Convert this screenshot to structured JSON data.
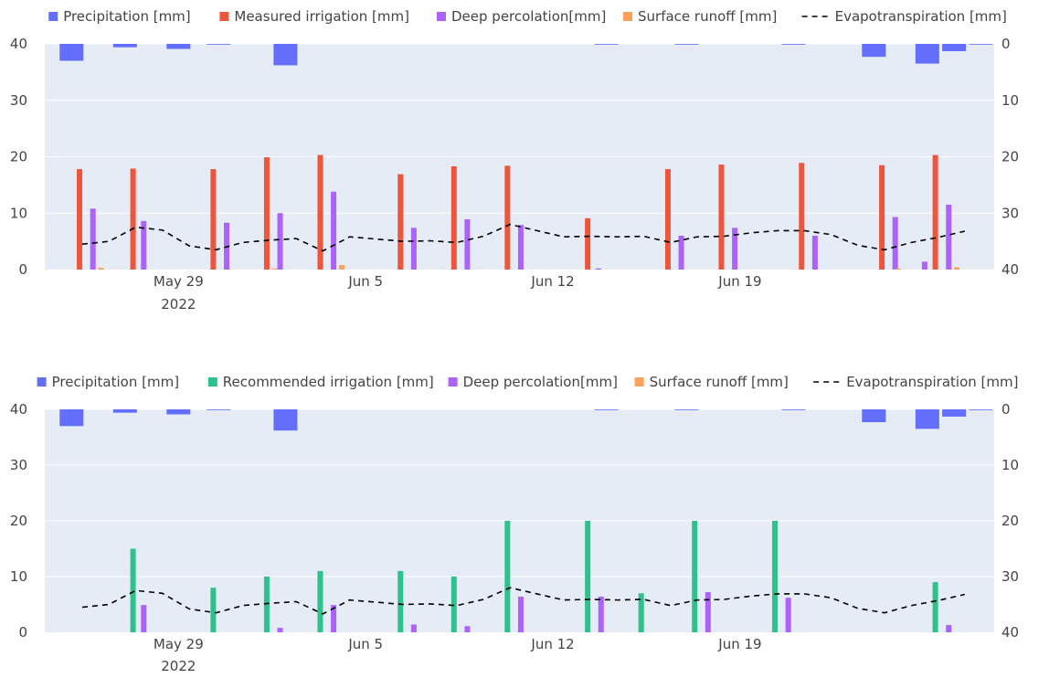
{
  "chart_data": [
    {
      "type": "bar",
      "series": [
        {
          "name": "Precipitation [mm]",
          "axis": "right",
          "x": [
            25,
            27,
            29,
            30.5,
            33,
            45,
            48,
            52,
            55,
            57,
            58,
            59
          ],
          "values": [
            3,
            0.6,
            0.9,
            0,
            3.8,
            0.05,
            0.1,
            0.05,
            2.3,
            3.5,
            1.3,
            0
          ],
          "color": "#636efa"
        },
        {
          "name": "Measured irrigation [mm]",
          "axis": "left",
          "x": [
            25.3,
            27.3,
            30.3,
            32.3,
            34.3,
            37.3,
            39.3,
            41.3,
            44.3,
            47.3,
            49.3,
            52.3,
            55.3,
            57.3
          ],
          "values": [
            17.8,
            17.9,
            17.8,
            19.9,
            20.3,
            16.9,
            18.3,
            18.4,
            9.1,
            17.8,
            18.6,
            18.9,
            18.5,
            20.3
          ],
          "color": "#ef553b"
        },
        {
          "name": "Deep percolation[mm]",
          "axis": "left",
          "x": [
            25.8,
            27.7,
            30.8,
            32.8,
            34.8,
            37.8,
            39.8,
            41.8,
            44.7,
            47.8,
            49.8,
            52.8,
            55.8,
            56.9,
            57.8
          ],
          "values": [
            10.8,
            8.6,
            8.3,
            10.0,
            13.8,
            7.4,
            8.9,
            7.9,
            0.2,
            6.0,
            7.4,
            6.0,
            9.3,
            1.4,
            11.5
          ],
          "color": "#ab63fa"
        },
        {
          "name": "Surface runoff [mm]",
          "axis": "left",
          "x": [
            26.1,
            32.6,
            35.1,
            55.9,
            58.1
          ],
          "values": [
            0.3,
            0.2,
            0.8,
            0.2,
            0.4
          ],
          "color": "#ffa15a"
        },
        {
          "name": "Evapotranspiration [mm]",
          "type": "line",
          "axis": "right",
          "x": [
            25.4,
            26.4,
            27.4,
            28.4,
            29.4,
            30.4,
            31.4,
            32.4,
            33.4,
            34.4,
            35.4,
            36.4,
            37.4,
            38.4,
            39.4,
            40.4,
            41.4,
            42.4,
            43.4,
            44.4,
            45.4,
            46.4,
            47.4,
            48.4,
            49.4,
            50.4,
            51.4,
            52.4,
            53.4,
            54.4,
            55.4,
            56.4,
            57.4,
            58.4
          ],
          "values": [
            35.5,
            35,
            32.5,
            33,
            35.8,
            36.5,
            35.2,
            34.8,
            34.5,
            36.7,
            34.2,
            34.6,
            35,
            34.9,
            35.2,
            34.1,
            32,
            33.1,
            34.2,
            34.1,
            34.2,
            34.1,
            35.2,
            34.2,
            34.1,
            33.5,
            33.1,
            33.1,
            33.8,
            35.7,
            36.5,
            35.2,
            34.3,
            33.2
          ],
          "color": "#000000"
        }
      ],
      "x_ticks": [
        {
          "value": 29,
          "label": "May 29"
        },
        {
          "value": 36,
          "label": "Jun 5"
        },
        {
          "value": 43,
          "label": "Jun 12"
        },
        {
          "value": 50,
          "label": "Jun 19"
        }
      ],
      "x_year_label": "2022",
      "ylim_left": [
        0,
        40
      ],
      "ylim_right": [
        0,
        40
      ],
      "right_axis_reversed": true,
      "y_ticks": [
        0,
        10,
        20,
        30,
        40
      ],
      "legend": [
        "Precipitation [mm]",
        "Measured irrigation [mm]",
        "Deep percolation[mm]",
        "Surface runoff [mm]",
        "Evapotranspiration [mm]"
      ],
      "legend_position": "top",
      "grid": true
    },
    {
      "type": "bar",
      "series": [
        {
          "name": "Precipitation [mm]",
          "axis": "right",
          "x": [
            25,
            27,
            29,
            30.5,
            33,
            45,
            48,
            52,
            55,
            57,
            58,
            59
          ],
          "values": [
            3,
            0.6,
            0.9,
            0,
            3.8,
            0.05,
            0.1,
            0.05,
            2.3,
            3.5,
            1.3,
            0
          ],
          "color": "#636efa"
        },
        {
          "name": "Recommended irrigation [mm]",
          "axis": "left",
          "x": [
            27.3,
            30.3,
            32.3,
            34.3,
            37.3,
            39.3,
            41.3,
            44.3,
            46.3,
            48.3,
            51.3,
            57.3
          ],
          "values": [
            15,
            8,
            10,
            11,
            11,
            10,
            20,
            20,
            7,
            20,
            20,
            9
          ],
          "color": "#2fc18c"
        },
        {
          "name": "Deep percolation[mm]",
          "axis": "left",
          "x": [
            27.7,
            32.8,
            34.8,
            37.8,
            39.8,
            41.8,
            44.8,
            48.8,
            51.8,
            57.8
          ],
          "values": [
            4.9,
            0.8,
            4.9,
            1.4,
            1.1,
            6.4,
            6.4,
            7.2,
            6.2,
            1.3
          ],
          "color": "#ab63fa"
        },
        {
          "name": "Surface runoff [mm]",
          "axis": "left",
          "x": [],
          "values": [],
          "color": "#ffa15a"
        },
        {
          "name": "Evapotranspiration [mm]",
          "type": "line",
          "axis": "right",
          "x": [
            25.4,
            26.4,
            27.4,
            28.4,
            29.4,
            30.4,
            31.4,
            32.4,
            33.4,
            34.4,
            35.4,
            36.4,
            37.4,
            38.4,
            39.4,
            40.4,
            41.4,
            42.4,
            43.4,
            44.4,
            45.4,
            46.4,
            47.4,
            48.4,
            49.4,
            50.4,
            51.4,
            52.4,
            53.4,
            54.4,
            55.4,
            56.4,
            57.4,
            58.4
          ],
          "values": [
            35.5,
            35,
            32.5,
            33,
            35.8,
            36.5,
            35.2,
            34.8,
            34.5,
            36.7,
            34.2,
            34.6,
            35,
            34.9,
            35.2,
            34.1,
            32,
            33.1,
            34.2,
            34.1,
            34.2,
            34.1,
            35.2,
            34.2,
            34.1,
            33.5,
            33.1,
            33.1,
            33.8,
            35.7,
            36.5,
            35.2,
            34.3,
            33.2
          ],
          "color": "#000000"
        }
      ],
      "x_ticks": [
        {
          "value": 29,
          "label": "May 29"
        },
        {
          "value": 36,
          "label": "Jun 5"
        },
        {
          "value": 43,
          "label": "Jun 12"
        },
        {
          "value": 50,
          "label": "Jun 19"
        }
      ],
      "x_year_label": "2022",
      "ylim_left": [
        0,
        40
      ],
      "ylim_right": [
        0,
        40
      ],
      "right_axis_reversed": true,
      "y_ticks": [
        0,
        10,
        20,
        30,
        40
      ],
      "legend": [
        "Precipitation [mm]",
        "Recommended irrigation [mm]",
        "Deep percolation[mm]",
        "Surface runoff [mm]",
        "Evapotranspiration [mm]"
      ],
      "legend_position": "top",
      "grid": true
    }
  ]
}
